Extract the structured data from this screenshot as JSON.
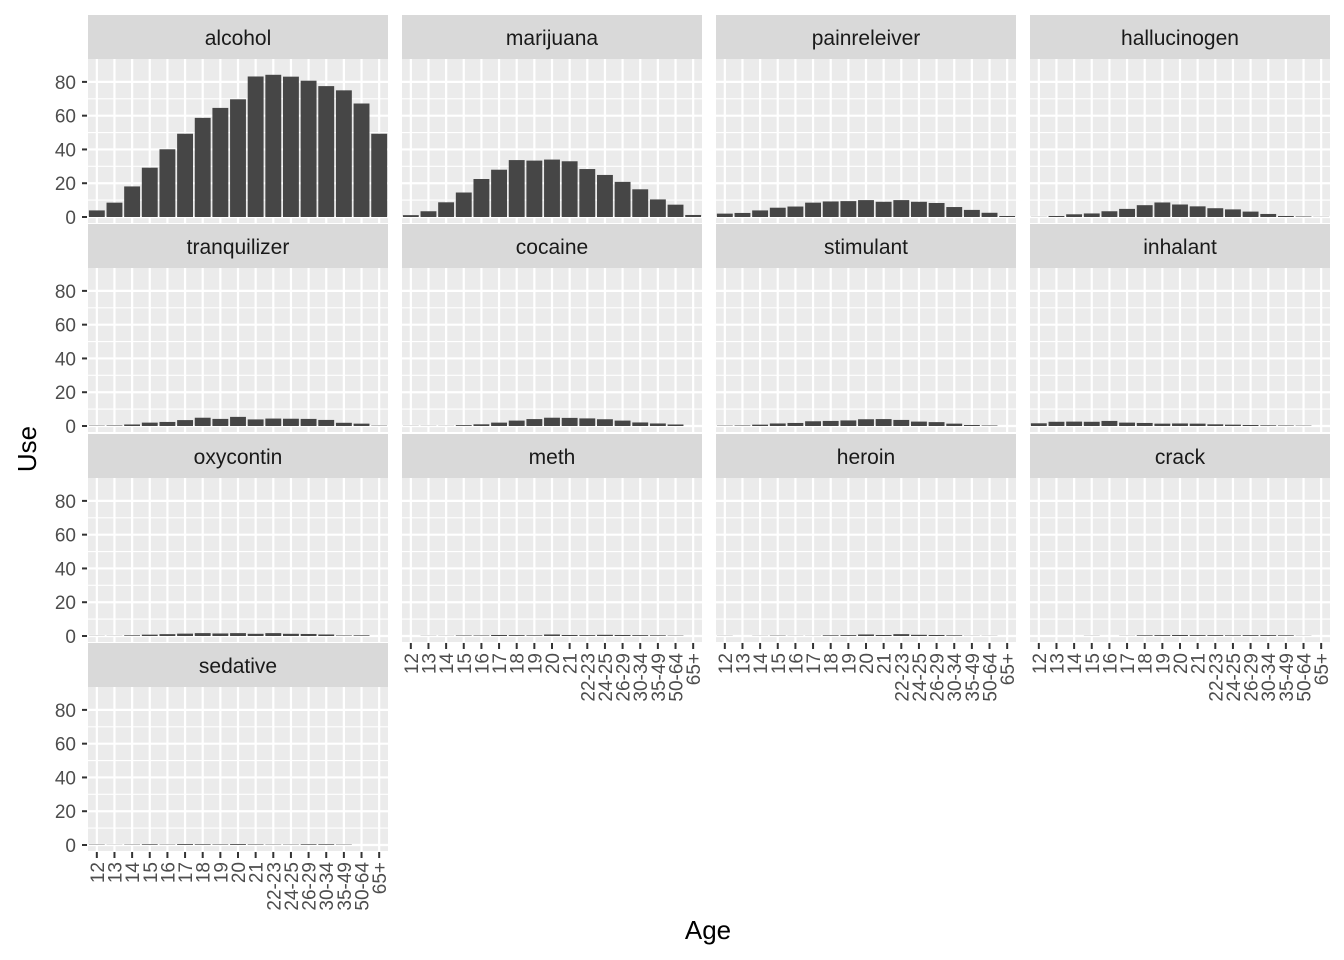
{
  "chart_data": {
    "type": "bar",
    "facet_layout": "wrap",
    "xlabel": "Age",
    "ylabel": "Use",
    "ylim": [
      0,
      90
    ],
    "yticks": [
      0,
      20,
      40,
      60,
      80
    ],
    "grid": true,
    "categories": [
      "12",
      "13",
      "14",
      "15",
      "16",
      "17",
      "18",
      "19",
      "20",
      "21",
      "22-23",
      "24-25",
      "26-29",
      "30-34",
      "35-49",
      "50-64",
      "65+"
    ],
    "colors": {
      "bar": "#464646",
      "panel": "#ebebeb",
      "strip": "#d9d9d9",
      "grid": "#ffffff"
    },
    "panels": [
      {
        "name": "alcohol",
        "values": [
          3.9,
          8.5,
          18.1,
          29.2,
          40.1,
          49.3,
          58.7,
          64.6,
          69.7,
          83.2,
          84.2,
          83.1,
          80.7,
          77.5,
          75.0,
          67.2,
          49.3
        ]
      },
      {
        "name": "marijuana",
        "values": [
          1.1,
          3.4,
          8.7,
          14.5,
          22.5,
          28.0,
          33.7,
          33.4,
          34.0,
          33.0,
          28.4,
          24.9,
          20.8,
          16.4,
          10.4,
          7.3,
          1.2
        ]
      },
      {
        "name": "painreleiver",
        "values": [
          2.0,
          2.4,
          3.9,
          5.5,
          6.2,
          8.5,
          9.2,
          9.4,
          10.0,
          9.0,
          10.0,
          9.0,
          8.3,
          5.9,
          4.2,
          2.5,
          0.6
        ]
      },
      {
        "name": "hallucinogen",
        "values": [
          0.1,
          0.6,
          1.6,
          2.1,
          3.4,
          4.8,
          7.0,
          8.6,
          7.4,
          6.3,
          5.2,
          4.5,
          3.2,
          1.8,
          0.6,
          0.3,
          0.1
        ]
      },
      {
        "name": "tranquilizer",
        "values": [
          0.2,
          0.3,
          0.9,
          2.0,
          2.4,
          3.5,
          4.9,
          4.2,
          5.4,
          3.9,
          4.4,
          4.3,
          4.2,
          3.6,
          1.9,
          1.4,
          0.2
        ]
      },
      {
        "name": "cocaine",
        "values": [
          0.1,
          0.1,
          0.1,
          0.5,
          1.0,
          2.0,
          3.2,
          4.1,
          4.9,
          4.8,
          4.5,
          4.0,
          3.2,
          2.1,
          1.5,
          0.9,
          0.0
        ]
      },
      {
        "name": "stimulant",
        "values": [
          0.2,
          0.3,
          0.8,
          1.5,
          1.8,
          2.8,
          3.0,
          3.3,
          4.0,
          4.1,
          3.6,
          2.6,
          2.3,
          1.4,
          0.6,
          0.3,
          0.0
        ]
      },
      {
        "name": "inhalant",
        "values": [
          1.6,
          2.5,
          2.6,
          2.5,
          3.0,
          2.0,
          1.8,
          1.4,
          1.5,
          1.4,
          1.0,
          0.8,
          0.6,
          0.4,
          0.3,
          0.2,
          0.0
        ]
      },
      {
        "name": "oxycontin",
        "values": [
          0.1,
          0.1,
          0.4,
          0.8,
          1.1,
          1.4,
          1.7,
          1.5,
          1.7,
          1.3,
          1.7,
          1.3,
          1.2,
          0.9,
          0.3,
          0.4,
          0.0
        ]
      },
      {
        "name": "meth",
        "values": [
          0.0,
          0.1,
          0.1,
          0.3,
          0.3,
          0.6,
          0.5,
          0.4,
          0.9,
          0.6,
          0.5,
          0.7,
          0.6,
          0.5,
          0.4,
          0.2,
          0.0
        ]
      },
      {
        "name": "heroin",
        "values": [
          0.1,
          0.0,
          0.1,
          0.2,
          0.1,
          0.1,
          0.4,
          0.5,
          0.9,
          0.6,
          1.1,
          0.7,
          0.6,
          0.4,
          0.1,
          0.1,
          0.0
        ]
      },
      {
        "name": "crack",
        "values": [
          0.0,
          0.0,
          0.0,
          0.1,
          0.0,
          0.1,
          0.4,
          0.5,
          0.6,
          0.5,
          0.5,
          0.4,
          0.5,
          0.5,
          0.4,
          0.1,
          0.0
        ]
      },
      {
        "name": "sedative",
        "values": [
          0.2,
          0.1,
          0.2,
          0.4,
          0.2,
          0.5,
          0.4,
          0.3,
          0.5,
          0.3,
          0.2,
          0.2,
          0.4,
          0.4,
          0.2,
          0.0,
          0.0
        ]
      }
    ]
  }
}
